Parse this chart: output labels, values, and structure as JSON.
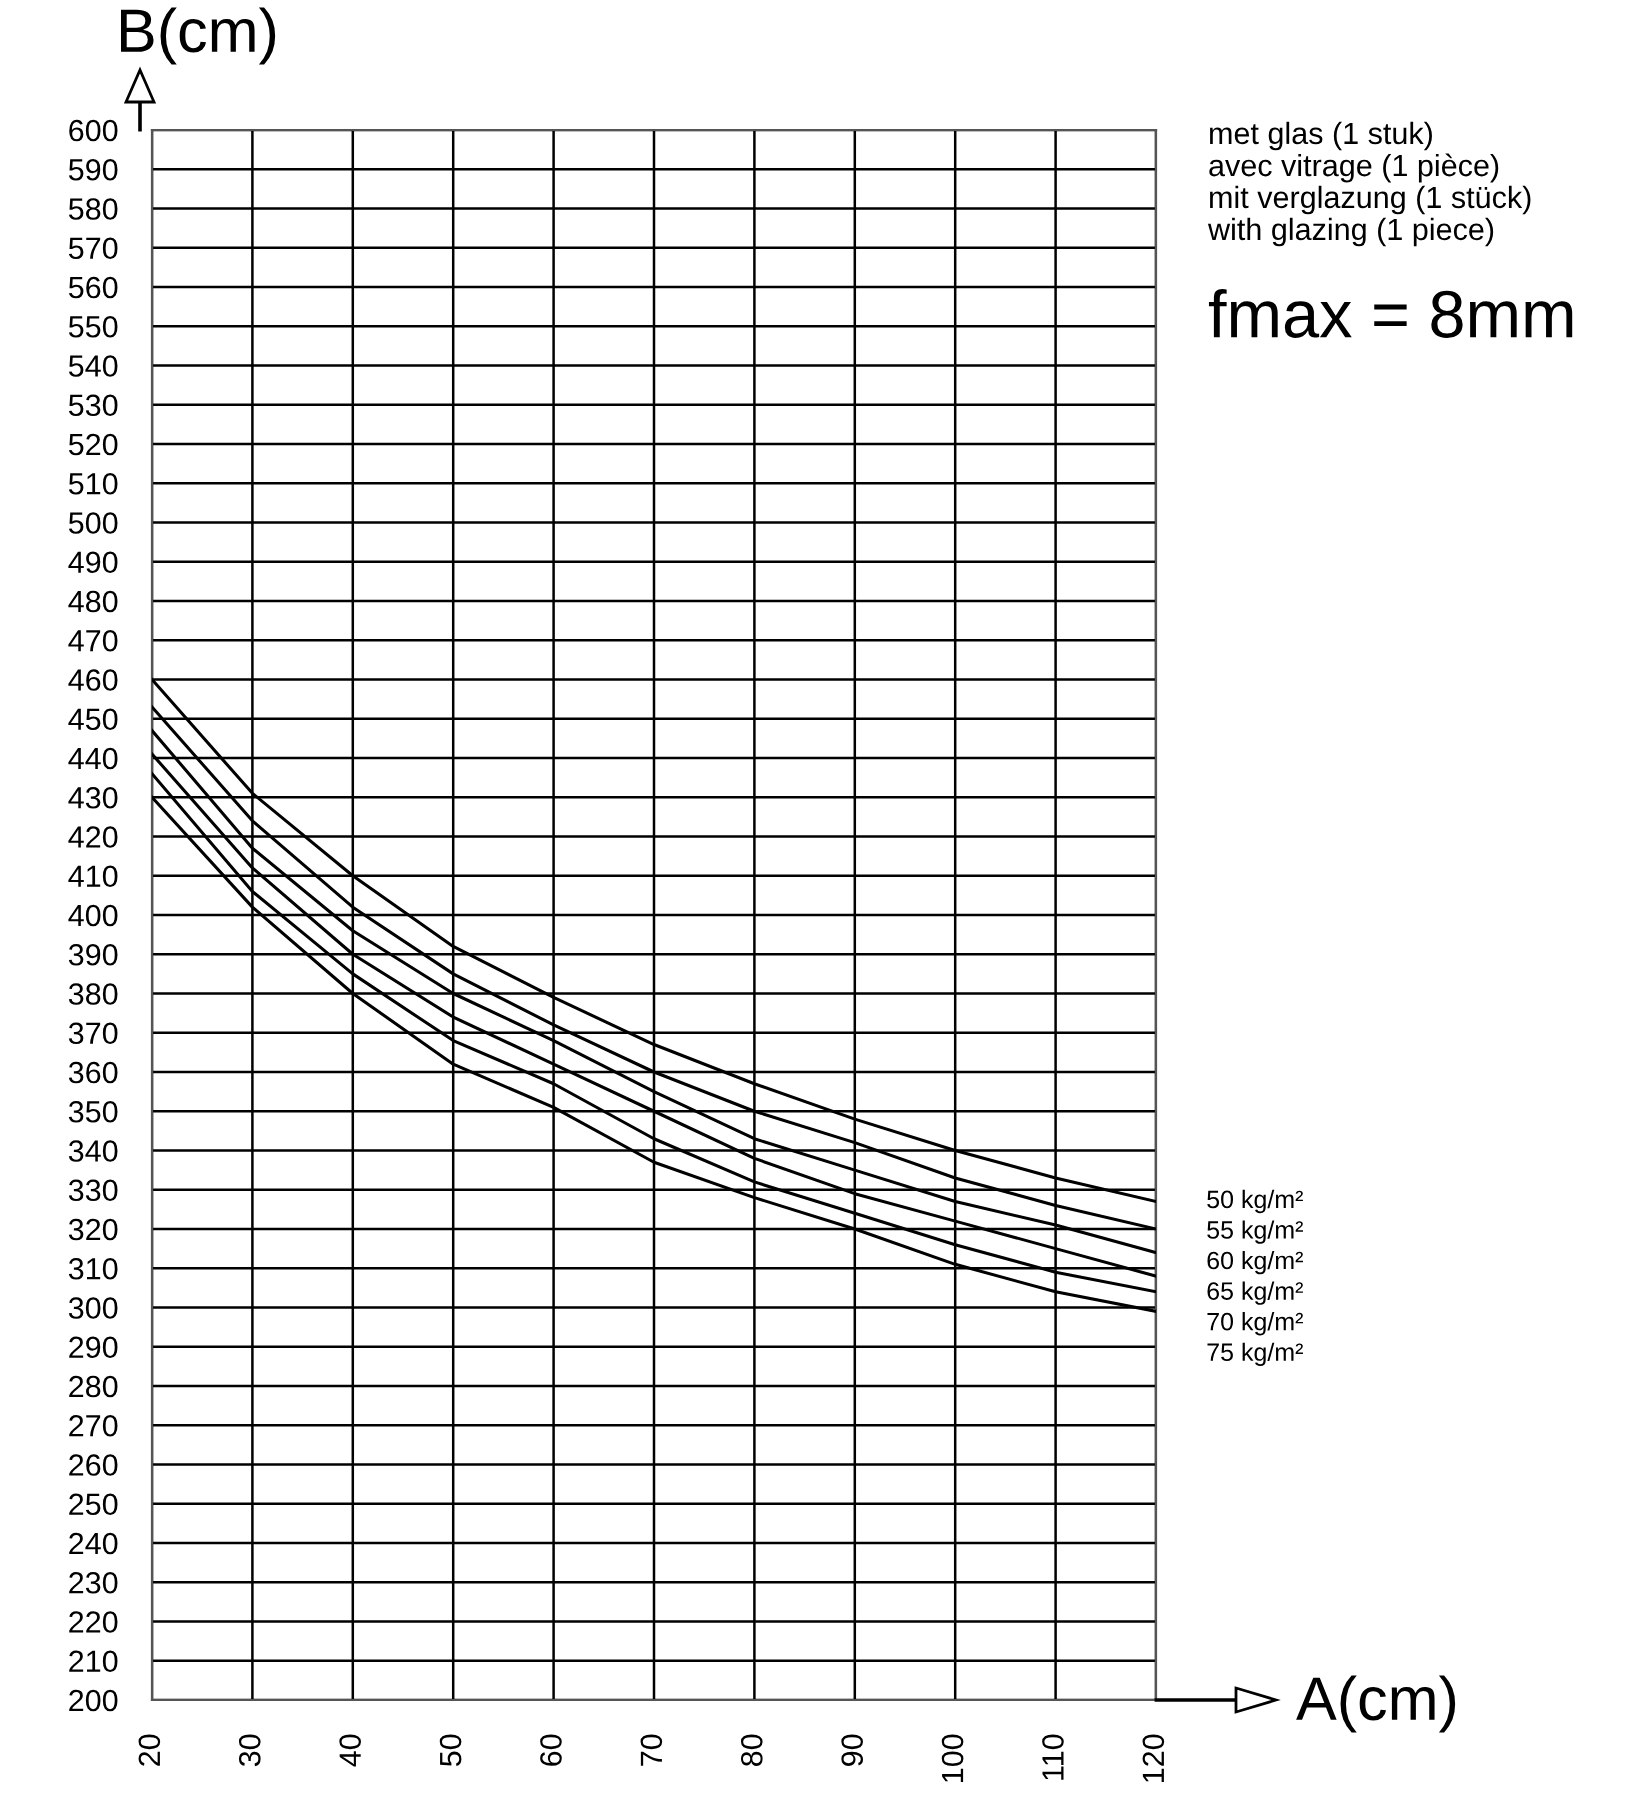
{
  "chart_data": {
    "type": "line",
    "xlabel": "A(cm)",
    "ylabel": "B(cm)",
    "x": [
      20,
      30,
      40,
      50,
      60,
      70,
      80,
      90,
      100,
      110,
      120
    ],
    "series": [
      {
        "name": "50 kg/m²",
        "color": "#000000",
        "values": [
          460,
          431,
          410,
          392,
          379,
          367,
          357,
          348,
          340,
          333,
          327
        ]
      },
      {
        "name": "55 kg/m²",
        "color": "#000000",
        "values": [
          453,
          424,
          402,
          385,
          372,
          360,
          350,
          342,
          333,
          326,
          320
        ]
      },
      {
        "name": "60 kg/m²",
        "color": "#000000",
        "values": [
          447,
          417,
          396,
          380,
          368,
          355,
          343,
          335,
          327,
          321,
          314
        ]
      },
      {
        "name": "65 kg/m²",
        "color": "#000000",
        "values": [
          441,
          412,
          390,
          374,
          362,
          350,
          338,
          329,
          322,
          315,
          308
        ]
      },
      {
        "name": "70 kg/m²",
        "color": "#000000",
        "values": [
          436,
          406,
          385,
          368,
          357,
          343,
          332,
          324,
          316,
          309,
          304
        ]
      },
      {
        "name": "75 kg/m²",
        "color": "#000000",
        "values": [
          430,
          402,
          380,
          362,
          351,
          337,
          328,
          320,
          311,
          304,
          299
        ]
      }
    ],
    "xlim": [
      20,
      120
    ],
    "ylim": [
      200,
      600
    ],
    "xticks": [
      20,
      30,
      40,
      50,
      60,
      70,
      80,
      90,
      100,
      110,
      120
    ],
    "yticks": [
      200,
      210,
      220,
      230,
      240,
      250,
      260,
      270,
      280,
      290,
      300,
      310,
      320,
      330,
      340,
      350,
      360,
      370,
      380,
      390,
      400,
      410,
      420,
      430,
      440,
      450,
      460,
      470,
      480,
      490,
      500,
      510,
      520,
      530,
      540,
      550,
      560,
      570,
      580,
      590,
      600
    ],
    "grid": true,
    "legend": false,
    "marker": "none",
    "line_style": "solid",
    "annotations": [
      "met glas (1 stuk)",
      "avec vitrage (1 pièce)",
      "mit verglazung (1 stück)",
      "with glazing (1 piece)",
      "fmax = 8mm"
    ]
  }
}
